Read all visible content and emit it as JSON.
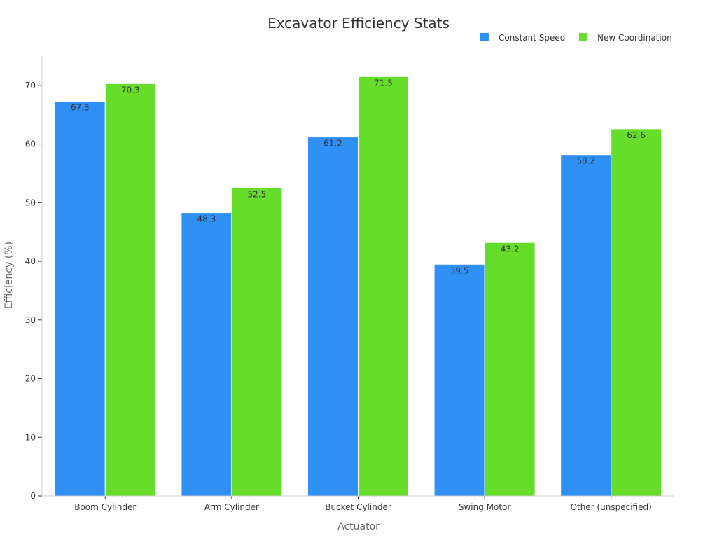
{
  "chart_data": {
    "type": "bar",
    "title": "Excavator Efficiency Stats",
    "xlabel": "Actuator",
    "ylabel": "Efficiency (%)",
    "categories": [
      "Boom Cylinder",
      "Arm Cylinder",
      "Bucket Cylinder",
      "Swing Motor",
      "Other (unspecified)"
    ],
    "series": [
      {
        "name": "Constant Speed",
        "color": "#2f91f5",
        "values": [
          67.3,
          48.3,
          61.2,
          39.5,
          58.2
        ]
      },
      {
        "name": "New Coordination",
        "color": "#66dd2a",
        "values": [
          70.3,
          52.5,
          71.5,
          43.2,
          62.6
        ]
      }
    ],
    "ylim": [
      0,
      75
    ],
    "yticks": [
      0,
      10,
      20,
      30,
      40,
      50,
      60,
      70
    ],
    "grid": false,
    "legend_position": "top-right",
    "data_labels": true
  }
}
